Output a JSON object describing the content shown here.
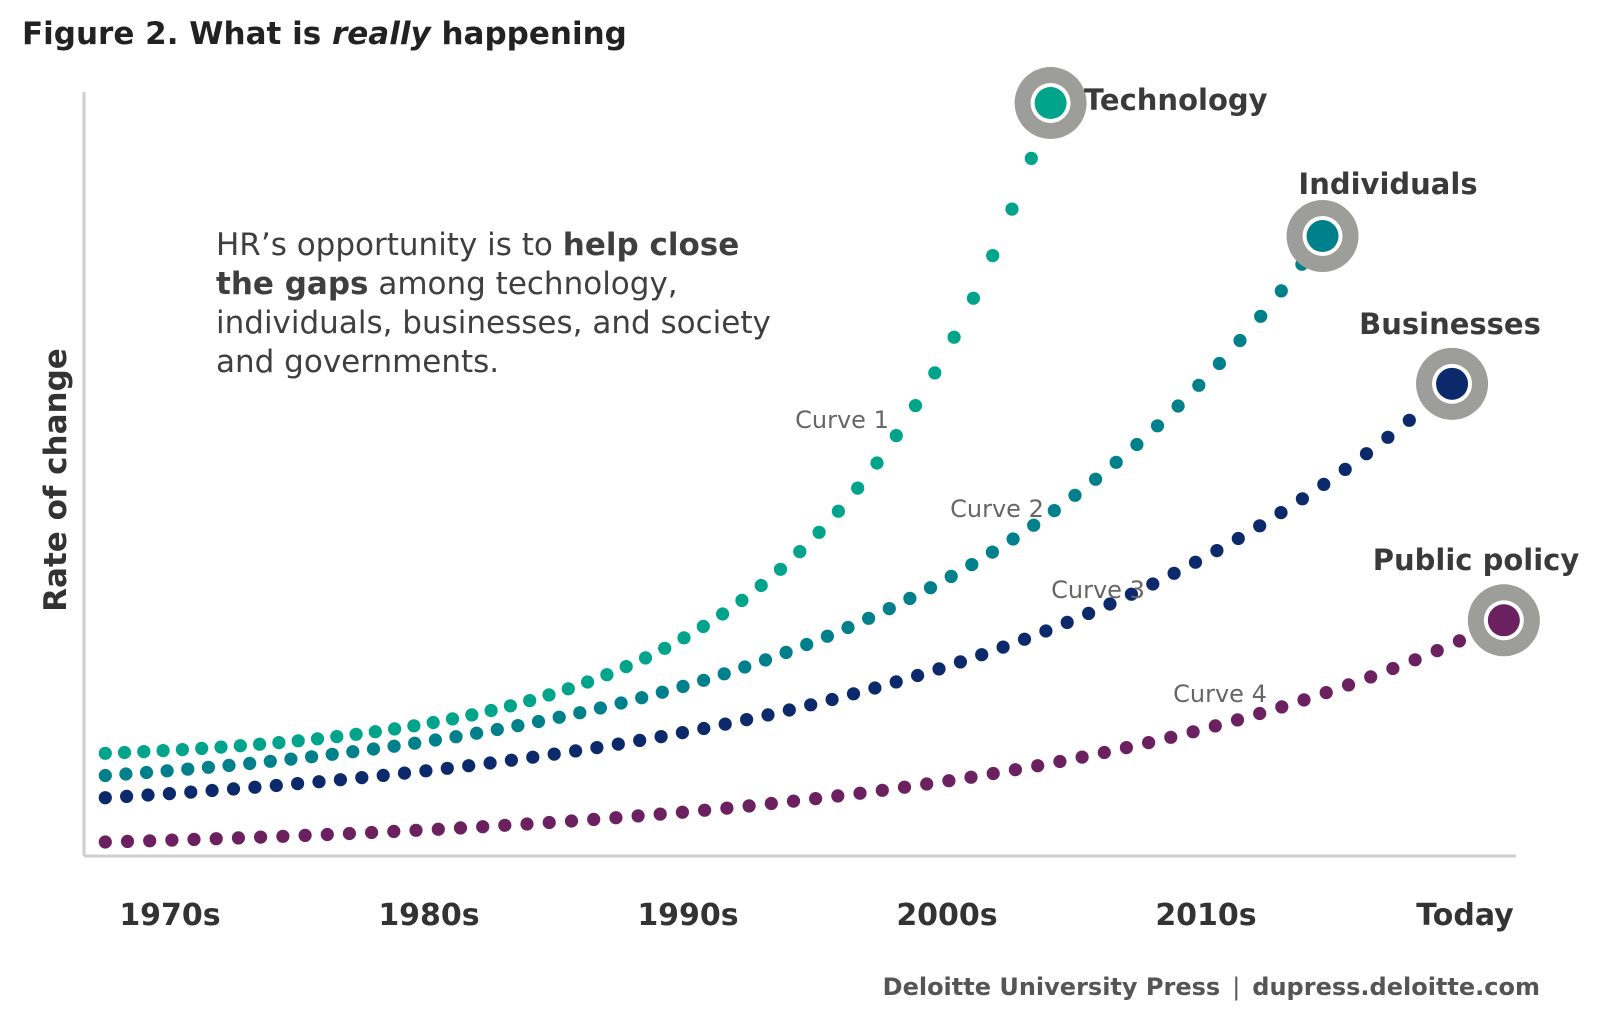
{
  "title": {
    "prefix": "Figure 2. What is ",
    "emphasis": "really",
    "suffix": " happening"
  },
  "callout": {
    "part1": "HR’s opportunity is to ",
    "bold": "help close the gaps",
    "part2": " among technology, individuals, businesses, and society and governments."
  },
  "footer": {
    "left": "Deloitte University Press",
    "separator": "|",
    "right": "dupress.deloitte.com"
  },
  "chart_data": {
    "type": "line",
    "ylabel": "Rate of change",
    "xlabel": "",
    "categories": [
      "1970s",
      "1980s",
      "1990s",
      "2000s",
      "2010s",
      "Today"
    ],
    "grid": false,
    "legend": "none",
    "series": [
      {
        "name": "Technology",
        "curve_label": "Curve 1",
        "color": "#00a48a",
        "start": [
          1967.5,
          12
        ],
        "end": [
          2004,
          100
        ],
        "growth": 4.3,
        "points": 50
      },
      {
        "name": "Individuals",
        "curve_label": "Curve 2",
        "color": "#00808a",
        "start": [
          1967.5,
          9
        ],
        "end": [
          2014.5,
          82
        ],
        "growth": 3.0,
        "points": 60
      },
      {
        "name": "Businesses",
        "curve_label": "Curve 3",
        "color": "#0c2a6b",
        "start": [
          1967.5,
          6
        ],
        "end": [
          2019.5,
          62
        ],
        "growth": 2.7,
        "points": 64
      },
      {
        "name": "Public policy",
        "curve_label": "Curve 4",
        "color": "#6b2160",
        "start": [
          1967.5,
          0
        ],
        "end": [
          2021.5,
          30
        ],
        "growth": 2.9,
        "points": 64
      }
    ]
  }
}
